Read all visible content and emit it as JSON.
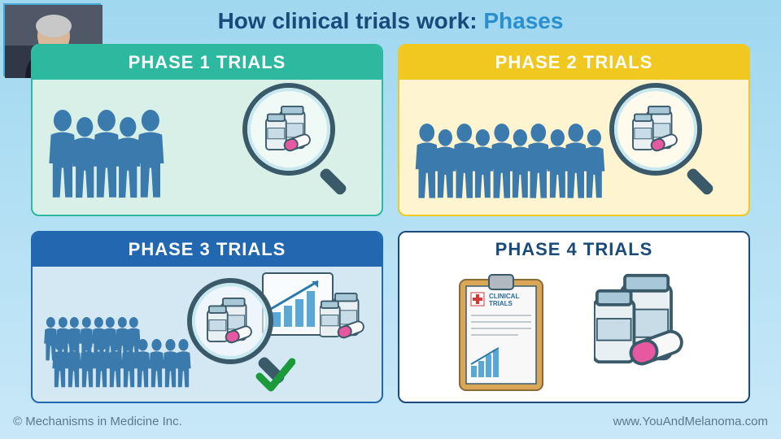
{
  "title": {
    "part1": "How clinical trials work: ",
    "part2": "Phases"
  },
  "colors": {
    "title1": "#1a4a7a",
    "title2": "#2a8fcc",
    "person_fill": "#3a7aac",
    "magnifier_ring": "#3a5a6a",
    "magnifier_ring_light": "#c8e8f0",
    "vial_body": "#e8f0f4",
    "vial_cap": "#a8c8d8",
    "vial_label": "#c8dce8",
    "pill_pink": "#e858a0",
    "pill_white": "#f8f8f8",
    "check": "#1a9a3a",
    "chart_bar": "#5aa8d8",
    "chart_arrow": "#2a7aac",
    "clipboard_back": "#d8a858",
    "clipboard_paper": "#f8f8f8",
    "clipboard_clip": "#b0b8c0",
    "red_cross": "#d83838"
  },
  "phases": [
    {
      "label": "PHASE 1 TRIALS",
      "header_bg": "#2db8a0",
      "header_text": "#ffffff",
      "border": "#2db8a0",
      "body_bg": "#d8f0e8",
      "people_count": 5,
      "people_scale": 1.0,
      "show_magnifier_vials": true,
      "show_chart": false,
      "show_check": false,
      "show_extra_vials": false,
      "show_clipboard": false
    },
    {
      "label": "PHASE 2 TRIALS",
      "header_bg": "#f0c820",
      "header_text": "#ffffff",
      "border": "#f0c820",
      "body_bg": "#fff4d0",
      "people_count": 10,
      "people_scale": 0.85,
      "show_magnifier_vials": true,
      "show_chart": false,
      "show_check": false,
      "show_extra_vials": false,
      "show_clipboard": false
    },
    {
      "label": "PHASE 3 TRIALS",
      "header_bg": "#2268b0",
      "header_text": "#ffffff",
      "border": "#2268b0",
      "body_bg": "#d4e8f4",
      "people_count": 18,
      "people_scale": 0.55,
      "show_magnifier_vials": true,
      "show_chart": true,
      "show_check": true,
      "show_extra_vials": true,
      "show_clipboard": false
    },
    {
      "label": "PHASE 4 TRIALS",
      "header_bg": "#ffffff",
      "header_text": "#1a4a7a",
      "border": "#1a4a7a",
      "body_bg": "#ffffff",
      "people_count": 0,
      "people_scale": 1.0,
      "show_magnifier_vials": false,
      "show_chart": false,
      "show_check": false,
      "show_extra_vials": true,
      "show_clipboard": true,
      "clipboard_text": "CLINICAL\nTRIALS"
    }
  ],
  "footer": {
    "left": "© Mechanisms in Medicine Inc.",
    "right": "www.YouAndMelanoma.com"
  }
}
